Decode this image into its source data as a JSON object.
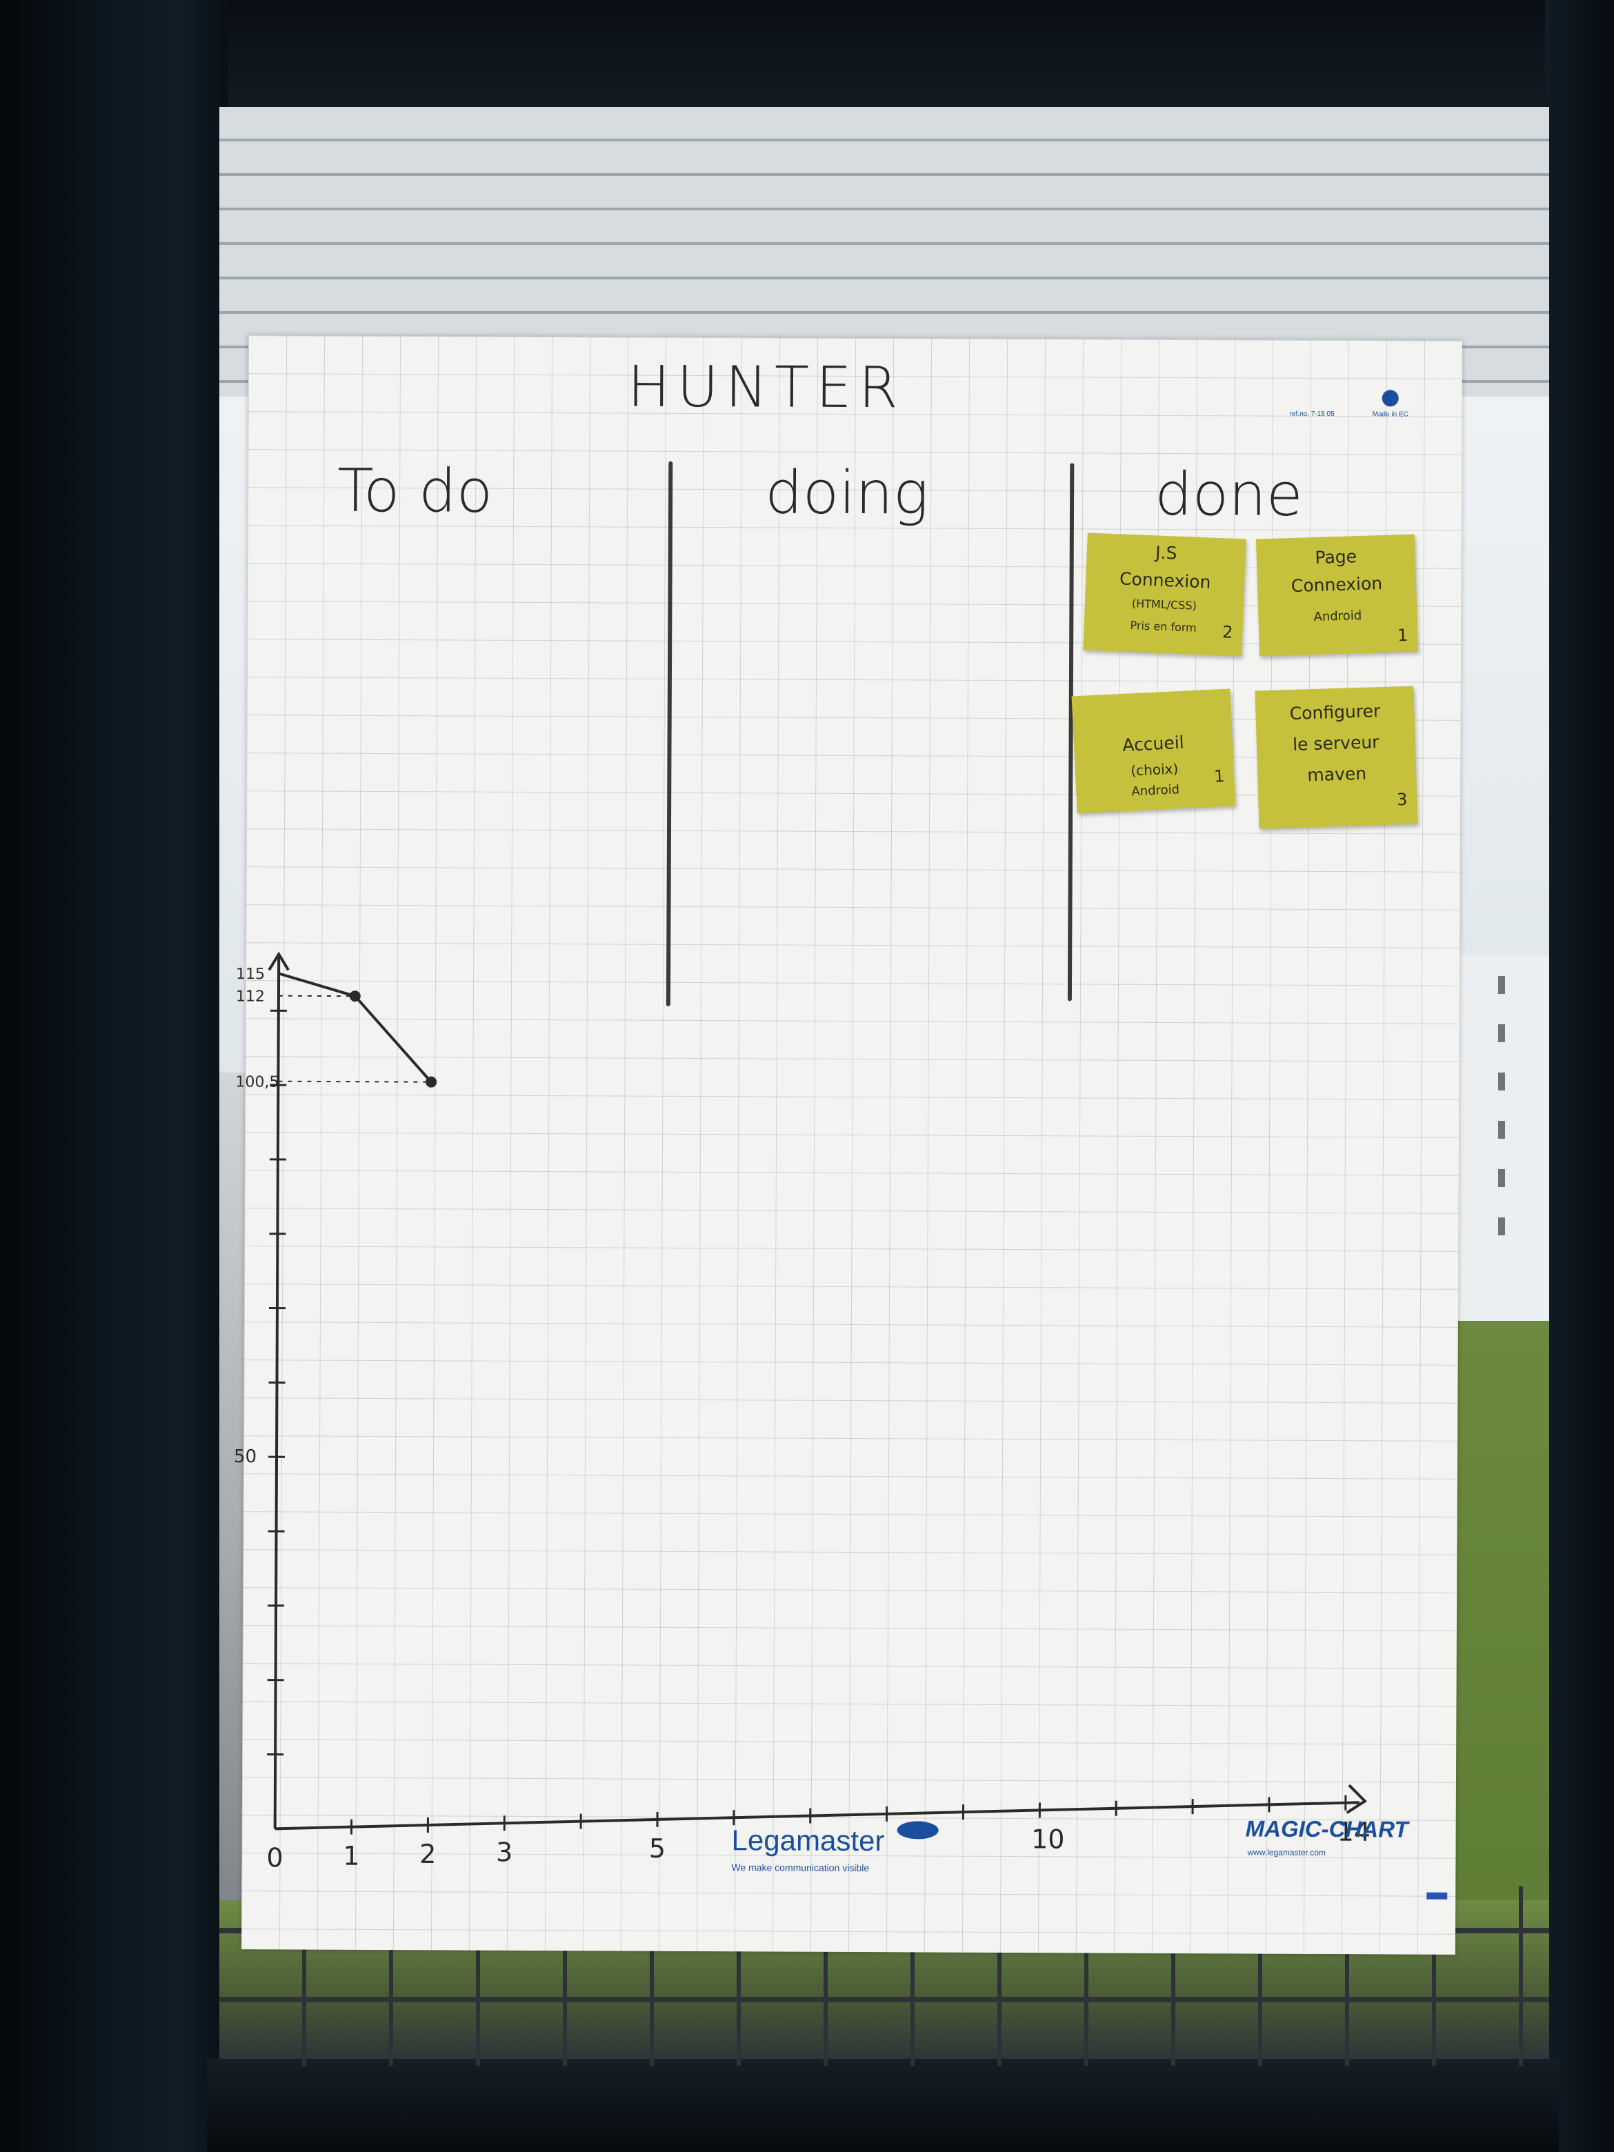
{
  "board": {
    "title": "HUNTER",
    "columns": [
      "To do",
      "doing",
      "done"
    ]
  },
  "notes": [
    {
      "lines": [
        "J.S",
        "Connexion",
        "(HTML/CSS)",
        "Pris en form"
      ],
      "points": "2"
    },
    {
      "lines": [
        "Page",
        "Connexion",
        "Android"
      ],
      "points": "1"
    },
    {
      "lines": [
        "Accueil",
        "(choix)",
        "Android"
      ],
      "points": "1"
    },
    {
      "lines": [
        "Configurer",
        "le serveur",
        "maven"
      ],
      "points": "3"
    }
  ],
  "chart_data": {
    "type": "line",
    "x_ticks": [
      "0",
      "1",
      "2",
      "3",
      "5",
      "10",
      "14"
    ],
    "y_ticks": [
      "115",
      "112",
      "100,5",
      "50"
    ],
    "series": [
      {
        "x": [
          0,
          1,
          2
        ],
        "y": [
          115,
          112,
          100.5
        ]
      }
    ],
    "xlim": [
      0,
      14
    ],
    "ylim": [
      0,
      115
    ]
  },
  "branding": {
    "legamaster": "Legamaster",
    "legamaster_tagline": "We make communication visible",
    "magic_chart": "MAGIC-CHART",
    "website": "www.legamaster.com",
    "product_ref": "ref.no. 7-15 05",
    "made_in": "Made in EC"
  },
  "colors": {
    "sticky_note": "#c6c13c",
    "brand_blue": "#1a4fa0",
    "ink": "#2a2a2a"
  }
}
